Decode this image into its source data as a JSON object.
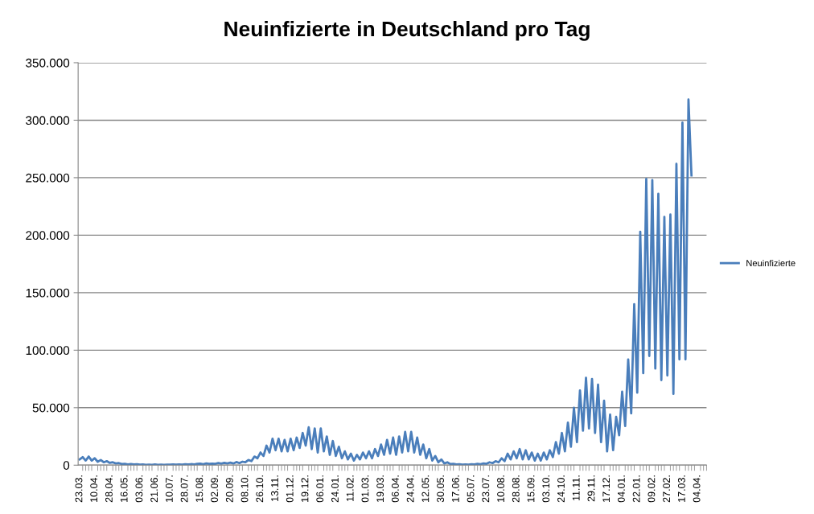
{
  "chart_data": {
    "type": "line",
    "title": "Neuinfizierte in Deutschland pro Tag",
    "categories": [
      "23.03.",
      null,
      null,
      null,
      null,
      "10.04.",
      null,
      null,
      null,
      null,
      "28.04.",
      null,
      null,
      null,
      null,
      "16.05.",
      null,
      null,
      null,
      null,
      "03.06.",
      null,
      null,
      null,
      null,
      "21.06.",
      null,
      null,
      null,
      null,
      "10.07.",
      null,
      null,
      null,
      null,
      "28.07.",
      null,
      null,
      null,
      null,
      "15.08.",
      null,
      null,
      null,
      null,
      "02.09.",
      null,
      null,
      null,
      null,
      "20.09.",
      null,
      null,
      null,
      null,
      "08.10.",
      null,
      null,
      null,
      null,
      "26.10.",
      null,
      null,
      null,
      null,
      "13.11.",
      null,
      null,
      null,
      null,
      "01.12.",
      null,
      null,
      null,
      null,
      "19.12.",
      null,
      null,
      null,
      null,
      "06.01.",
      null,
      null,
      null,
      null,
      "24.01.",
      null,
      null,
      null,
      null,
      "11.02.",
      null,
      null,
      null,
      null,
      "01.03.",
      null,
      null,
      null,
      null,
      "19.03.",
      null,
      null,
      null,
      null,
      "06.04.",
      null,
      null,
      null,
      null,
      "24.04.",
      null,
      null,
      null,
      null,
      "12.05.",
      null,
      null,
      null,
      null,
      "30.05.",
      null,
      null,
      null,
      null,
      "17.06.",
      null,
      null,
      null,
      null,
      "05.07.",
      null,
      null,
      null,
      null,
      "23.07.",
      null,
      null,
      null,
      null,
      "10.08.",
      null,
      null,
      null,
      null,
      "28.08.",
      null,
      null,
      null,
      null,
      "15.09.",
      null,
      null,
      null,
      null,
      "03.10.",
      null,
      null,
      null,
      null,
      "24.10.",
      null,
      null,
      null,
      null,
      "11.11.",
      null,
      null,
      null,
      null,
      "29.11.",
      null,
      null,
      null,
      null,
      "17.12.",
      null,
      null,
      null,
      null,
      "04.01.",
      null,
      null,
      null,
      null,
      "22.01.",
      null,
      null,
      null,
      null,
      "09.02.",
      null,
      null,
      null,
      null,
      "27.02.",
      null,
      null,
      null,
      null,
      "17.03.",
      null,
      null,
      null,
      null,
      "04.04."
    ],
    "series": [
      {
        "name": "Neuinfizierte",
        "color": "#4a7ebb",
        "values": [
          5000,
          7000,
          4000,
          7500,
          4000,
          6000,
          3000,
          4500,
          2500,
          3500,
          2000,
          2500,
          1500,
          1800,
          1000,
          1200,
          700,
          1000,
          600,
          800,
          400,
          600,
          300,
          500,
          300,
          600,
          300,
          500,
          300,
          500,
          400,
          600,
          400,
          700,
          500,
          800,
          600,
          900,
          700,
          1100,
          1300,
          900,
          1500,
          1100,
          1400,
          1200,
          1800,
          1300,
          2000,
          1500,
          2200,
          1500,
          2700,
          1800,
          3000,
          2500,
          4500,
          3500,
          7500,
          6000,
          11000,
          8000,
          17000,
          11000,
          23000,
          13000,
          23000,
          12000,
          22000,
          12000,
          23000,
          13000,
          24000,
          15000,
          28000,
          17000,
          33000,
          14000,
          32000,
          11000,
          32000,
          12000,
          25000,
          9000,
          21000,
          8000,
          16000,
          6000,
          12000,
          5000,
          10000,
          4000,
          9000,
          5000,
          11000,
          6000,
          12000,
          6000,
          14000,
          8000,
          18000,
          9000,
          22000,
          10000,
          24000,
          9000,
          25000,
          11000,
          29000,
          12000,
          29000,
          11000,
          24000,
          9000,
          18000,
          6000,
          14000,
          4000,
          8000,
          2500,
          5000,
          1500,
          2500,
          1000,
          1200,
          600,
          800,
          500,
          700,
          400,
          800,
          600,
          1200,
          900,
          1500,
          1200,
          2500,
          1800,
          3500,
          2500,
          6000,
          3500,
          10000,
          5000,
          12000,
          6000,
          14000,
          5000,
          13000,
          5000,
          11000,
          4000,
          10000,
          4000,
          11000,
          5000,
          13000,
          7000,
          20000,
          10000,
          28000,
          12000,
          37000,
          16000,
          50000,
          20000,
          65000,
          30000,
          76000,
          32000,
          75000,
          28000,
          70000,
          20000,
          56000,
          12000,
          44000,
          13000,
          42000,
          26000,
          64000,
          34000,
          92000,
          45000,
          140000,
          63000,
          203000,
          80000,
          249000,
          95000,
          248000,
          84000,
          236000,
          74000,
          216000,
          78000,
          218000,
          62000,
          262000,
          92000,
          298000,
          92000,
          318000,
          252000,
          null,
          null
        ]
      }
    ],
    "ylim": [
      0,
      350000
    ],
    "yticks": [
      0,
      {
        "value": 50000,
        "label": "50.000"
      },
      {
        "value": 100000,
        "label": "100.000"
      },
      {
        "value": 150000,
        "label": "150.000"
      },
      {
        "value": 200000,
        "label": "200.000"
      },
      {
        "value": 250000,
        "label": "250.000"
      },
      {
        "value": 300000,
        "label": "300.000"
      },
      {
        "value": 350000,
        "label": "350.000"
      }
    ],
    "grid": "y",
    "legend": "right",
    "marker": "none",
    "line_style": "solid"
  }
}
